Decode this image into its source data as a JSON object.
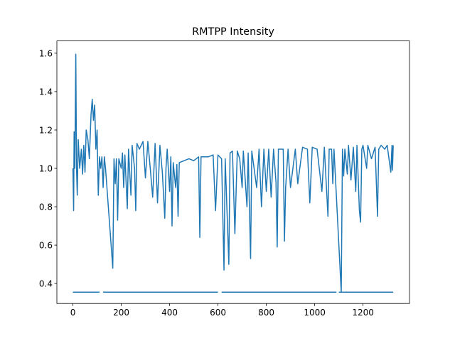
{
  "chart_data": {
    "type": "line",
    "title": "RMTPP Intensity",
    "xlim": [
      -66.3,
      1392.3
    ],
    "ylim": [
      0.296,
      1.664
    ],
    "xticks": [
      0,
      200,
      400,
      600,
      800,
      1000,
      1200
    ],
    "yticks": [
      0.4,
      0.6,
      0.8,
      {
        "value": 1,
        "label": "1.0"
      },
      1.2,
      1.4,
      1.6
    ],
    "series": [
      {
        "color": "#1f77b4",
        "x": [
          0,
          3,
          5,
          8,
          12,
          15,
          18,
          22,
          28,
          35,
          40,
          45,
          50,
          55,
          62,
          68,
          75,
          80,
          85,
          90,
          95,
          100,
          105,
          110,
          115,
          120,
          125,
          130,
          135,
          165,
          170,
          175,
          180,
          185,
          190,
          200,
          205,
          210,
          215,
          225,
          230,
          240,
          245,
          255,
          260,
          265,
          275,
          290,
          300,
          310,
          320,
          330,
          340,
          350,
          360,
          370,
          380,
          385,
          390,
          400,
          405,
          410,
          415,
          425,
          430,
          435,
          440,
          460,
          480,
          500,
          520,
          525,
          530,
          560,
          580,
          590,
          600,
          615,
          625,
          630,
          645,
          650,
          660,
          670,
          680,
          690,
          700,
          705,
          720,
          725,
          735,
          740,
          760,
          770,
          780,
          790,
          800,
          810,
          820,
          830,
          840,
          845,
          850,
          870,
          875,
          880,
          890,
          900,
          920,
          930,
          950,
          970,
          980,
          990,
          1010,
          1030,
          1040,
          1055,
          1060,
          1070,
          1075,
          1080,
          1110,
          1115,
          1120,
          1125,
          1135,
          1140,
          1150,
          1160,
          1170,
          1175,
          1185,
          1190,
          1195,
          1200,
          1215,
          1220,
          1235,
          1250,
          1260,
          1265,
          1275,
          1290,
          1300,
          1315,
          1320,
          1322,
          1325
        ],
        "values": [
          1.0,
          0.78,
          1.19,
          1.0,
          1.595,
          1.0,
          0.86,
          1.15,
          1.0,
          1.1,
          0.97,
          1.12,
          0.98,
          1.2,
          1.15,
          1.05,
          1.28,
          1.36,
          1.25,
          1.33,
          1.1,
          1.2,
          0.86,
          1.06,
          1.0,
          1.06,
          0.9,
          1.06,
          1.0,
          0.48,
          1.05,
          0.92,
          1.05,
          0.73,
          1.05,
          1.0,
          1.08,
          0.9,
          1.07,
          0.79,
          1.1,
          0.86,
          1.12,
          1.0,
          0.78,
          1.13,
          1.1,
          1.14,
          0.95,
          1.14,
          1.0,
          0.85,
          1.13,
          0.82,
          1.12,
          0.98,
          0.74,
          1.0,
          1.1,
          0.88,
          1.06,
          0.7,
          1.03,
          0.9,
          1.02,
          0.75,
          1.03,
          1.04,
          1.05,
          1.04,
          1.06,
          0.64,
          1.06,
          1.06,
          1.07,
          0.78,
          1.07,
          1.05,
          0.47,
          1.05,
          0.5,
          1.08,
          1.09,
          0.66,
          1.09,
          1.05,
          0.9,
          1.09,
          0.8,
          1.08,
          0.53,
          1.09,
          0.9,
          1.1,
          0.8,
          1.1,
          0.88,
          1.1,
          0.85,
          1.1,
          0.93,
          0.59,
          1.1,
          1.1,
          0.62,
          0.9,
          1.1,
          0.9,
          1.1,
          0.92,
          1.11,
          1.1,
          0.82,
          1.11,
          1.1,
          0.88,
          1.11,
          0.75,
          1.1,
          1.1,
          0.92,
          1.1,
          0.355,
          1.1,
          0.96,
          1.1,
          0.97,
          1.12,
          0.94,
          1.11,
          0.88,
          1.12,
          0.78,
          0.72,
          1.1,
          1.12,
          1.0,
          1.12,
          1.05,
          1.11,
          0.75,
          1.1,
          1.12,
          1.1,
          1.12,
          0.98,
          1.12,
          0.99,
          1.12
        ]
      },
      {
        "color": "#1f77b4",
        "x": [
          0,
          110,
          118,
          125,
          600,
          608,
          615,
          1090,
          1095,
          1100,
          1325
        ],
        "values": [
          0.355,
          0.355,
          null,
          0.355,
          0.355,
          null,
          0.355,
          0.355,
          null,
          0.355,
          0.355
        ]
      }
    ]
  }
}
